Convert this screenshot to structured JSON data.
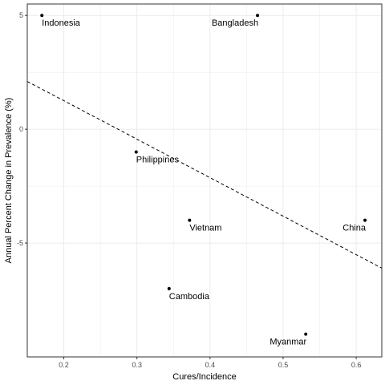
{
  "chart_data": {
    "type": "scatter",
    "title": "",
    "xlabel": "Cures/Incidence",
    "ylabel": "Annual Percent Change in Prevalence (%)",
    "xlim": [
      0.15,
      0.635
    ],
    "ylim": [
      -10,
      5.5
    ],
    "x_ticks": [
      0.2,
      0.3,
      0.4,
      0.5,
      0.6
    ],
    "x_tick_labels": [
      "0.2",
      "0.3",
      "0.4",
      "0.5",
      "0.6"
    ],
    "y_ticks": [
      5,
      0,
      -5
    ],
    "y_tick_labels": [
      "5",
      "0",
      "-5"
    ],
    "grid": true,
    "legend": "none",
    "points": [
      {
        "label": "Indonesia",
        "x": 0.17,
        "y": 5.0,
        "label_anchor": "right"
      },
      {
        "label": "Bangladesh",
        "x": 0.465,
        "y": 5.0,
        "label_anchor": "left"
      },
      {
        "label": "Philippines",
        "x": 0.299,
        "y": -1.0,
        "label_anchor": "right"
      },
      {
        "label": "Vietnam",
        "x": 0.372,
        "y": -4.0,
        "label_anchor": "right"
      },
      {
        "label": "China",
        "x": 0.612,
        "y": -4.0,
        "label_anchor": "left"
      },
      {
        "label": "Cambodia",
        "x": 0.344,
        "y": -7.0,
        "label_anchor": "right"
      },
      {
        "label": "Myanmar",
        "x": 0.531,
        "y": -9.0,
        "label_anchor": "left"
      }
    ],
    "trend_line": {
      "style": "dashed",
      "points": [
        [
          0.15,
          2.1
        ],
        [
          0.635,
          -6.1
        ]
      ]
    },
    "colors": {
      "points": "#000000",
      "grid": "#ebebeb",
      "panel_border": "#333333",
      "tick_label": "#4d4d4d"
    }
  }
}
